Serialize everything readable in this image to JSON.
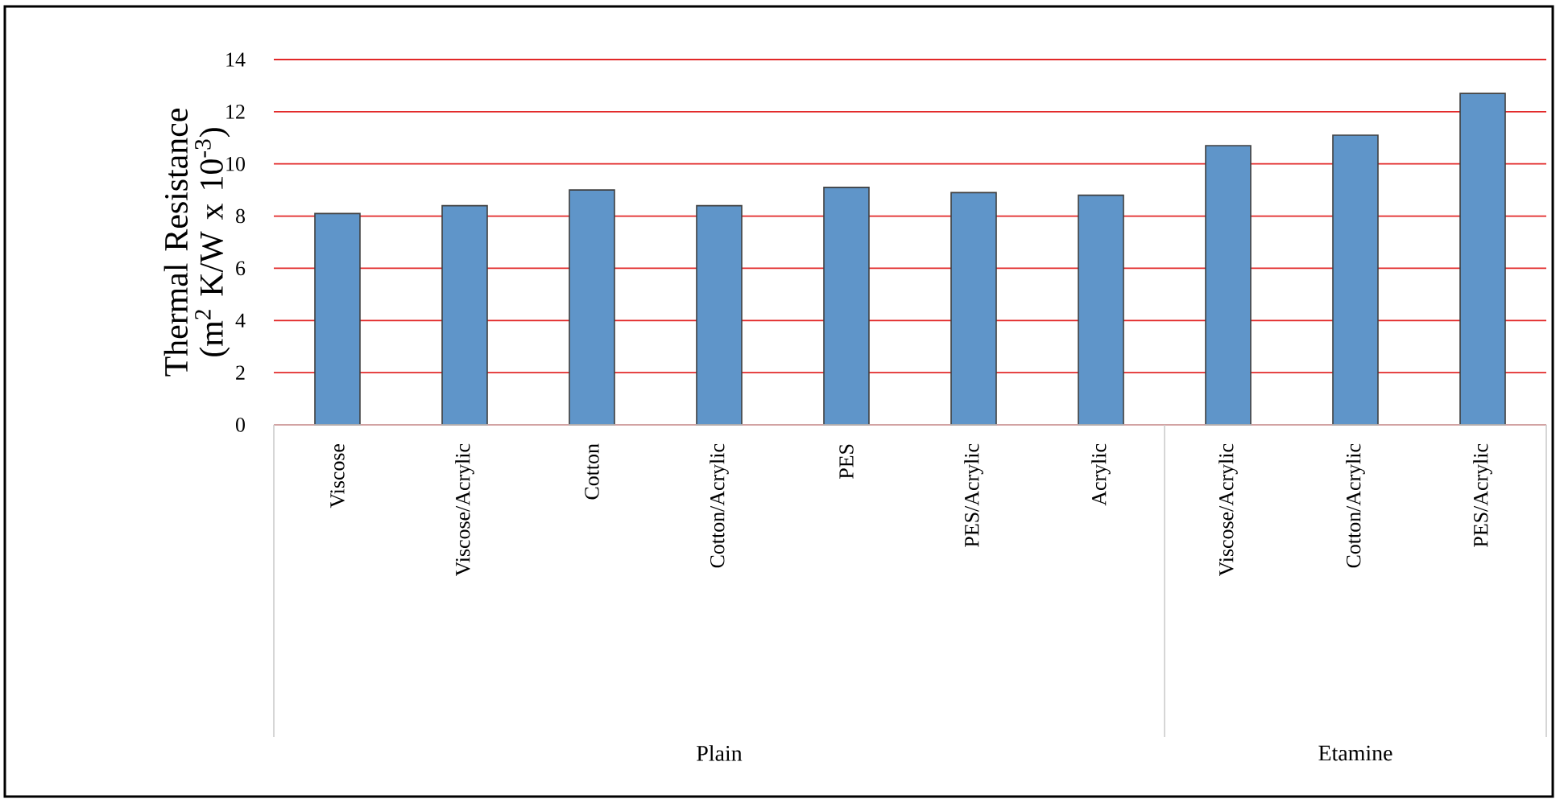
{
  "chart_data": {
    "type": "bar",
    "ylabel": "Thermal Resistance (m$^{2}$ K/W x 10$^{-3}$)",
    "categories": [
      "Viscose",
      "Viscose/Acrylic",
      "Cotton",
      "Cotton/Acrylic",
      "PES",
      "PES/Acrylic",
      "Acrylic",
      "Viscose/Acrylic",
      "Cotton/Acrylic",
      "PES/Acrylic"
    ],
    "values": [
      8.1,
      8.4,
      9.0,
      8.4,
      9.1,
      8.9,
      8.8,
      10.7,
      11.1,
      12.7
    ],
    "color": "#5f95c9",
    "ylim": [
      0,
      14
    ],
    "yticks": [
      0,
      2,
      4,
      6,
      8,
      10,
      12,
      14
    ],
    "grid": "y",
    "annotations": [
      "Plain",
      "Etamine"
    ]
  }
}
